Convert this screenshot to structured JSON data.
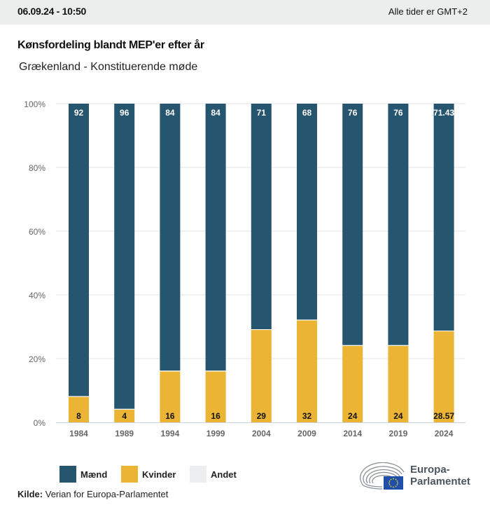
{
  "header": {
    "datetime": "06.09.24 - 10:50",
    "timezone_note": "Alle tider er GMT+2"
  },
  "title": "Kønsfordeling blandt MEP'er efter år",
  "subtitle": "Grækenland - Konstituerende møde",
  "colors": {
    "men": "#25556f",
    "women": "#ebb435",
    "other": "#eceeef",
    "grid": "#e3e3e3",
    "baseline": "#c9d3e0",
    "axis_text": "#666666"
  },
  "chart_data": {
    "type": "bar",
    "stacked": true,
    "normalized_percent": true,
    "title": "Kønsfordeling blandt MEP'er efter år",
    "subtitle": "Grækenland - Konstituerende møde",
    "xlabel": "",
    "ylabel": "",
    "ylim": [
      0,
      100
    ],
    "yticks": [
      0,
      20,
      40,
      60,
      80,
      100
    ],
    "ytick_labels": [
      "0%",
      "20%",
      "40%",
      "60%",
      "80%",
      "100%"
    ],
    "grid": true,
    "legend_position": "bottom-left",
    "categories": [
      "1984",
      "1989",
      "1994",
      "1999",
      "2004",
      "2009",
      "2014",
      "2019",
      "2024"
    ],
    "series": [
      {
        "name": "Kvinder",
        "key": "women",
        "values": [
          8,
          4,
          16,
          16,
          29,
          32,
          24,
          24,
          28.57
        ],
        "labels": [
          "8",
          "4",
          "16",
          "16",
          "29",
          "32",
          "24",
          "24",
          "28.57"
        ]
      },
      {
        "name": "Mænd",
        "key": "men",
        "values": [
          92,
          96,
          84,
          84,
          71,
          68,
          76,
          76,
          71.43
        ],
        "labels": [
          "92",
          "96",
          "84",
          "84",
          "71",
          "68",
          "76",
          "76",
          "71.43"
        ]
      },
      {
        "name": "Andet",
        "key": "other",
        "values": [
          0,
          0,
          0,
          0,
          0,
          0,
          0,
          0,
          0
        ]
      }
    ]
  },
  "legend": [
    {
      "label": "Mænd",
      "key": "men"
    },
    {
      "label": "Kvinder",
      "key": "women"
    },
    {
      "label": "Andet",
      "key": "other"
    }
  ],
  "source": {
    "label": "Kilde:",
    "text": "Verian for Europa-Parlamentet"
  },
  "logo": {
    "line1": "Europa-",
    "line2": "Parlamentet",
    "icon": "european-parliament-hemicycle-eu-flag-icon"
  }
}
